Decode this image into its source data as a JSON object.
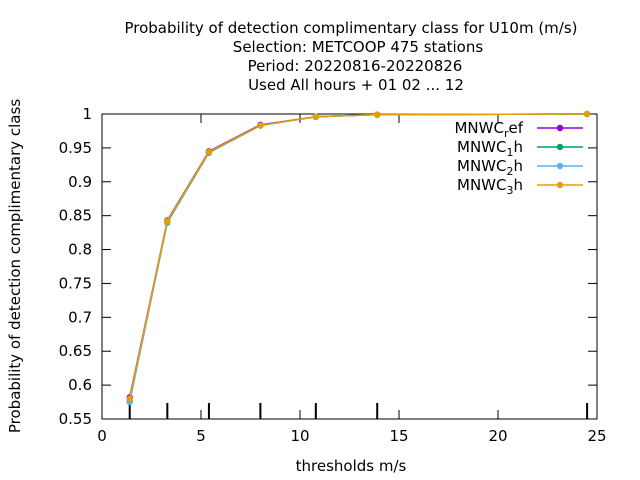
{
  "chart_data": {
    "type": "line",
    "title_lines": [
      "Probability of detection complimentary class  for U10m (m/s)",
      "Selection: METCOOP    475 stations",
      "Period: 20220816-20220826",
      "Used  All hours + 01 02 ... 12"
    ],
    "xlabel": "thresholds m/s",
    "ylabel": "Probability of detection complimentary class",
    "xlim": [
      0,
      25
    ],
    "ylim": [
      0.55,
      1
    ],
    "xticks": [
      0,
      5,
      10,
      15,
      20,
      25
    ],
    "yticks": [
      0.55,
      0.6,
      0.65,
      0.7,
      0.75,
      0.8,
      0.85,
      0.9,
      0.95,
      1
    ],
    "ytick_labels": [
      "0.55",
      "0.6",
      "0.65",
      "0.7",
      "0.75",
      "0.8",
      "0.85",
      "0.9",
      "0.95",
      "1"
    ],
    "threshold_marks": [
      1.4,
      3.3,
      5.4,
      8.0,
      10.8,
      13.9,
      24.5
    ],
    "legend_position": "top-right",
    "x": [
      1.4,
      3.3,
      5.4,
      8.0,
      10.8,
      13.9,
      24.5
    ],
    "series": [
      {
        "name_base": "MNWC",
        "name_sub": "r",
        "name_tail": "ef",
        "color": "#9400d3",
        "values": [
          0.582,
          0.843,
          0.945,
          0.984,
          0.996,
          0.999,
          1.0
        ]
      },
      {
        "name_base": "MNWC",
        "name_sub": "1",
        "name_tail": "h",
        "color": "#009e73",
        "values": [
          0.577,
          0.84,
          0.943,
          0.983,
          0.996,
          0.999,
          1.0
        ]
      },
      {
        "name_base": "MNWC",
        "name_sub": "2",
        "name_tail": "h",
        "color": "#56b4e9",
        "values": [
          0.575,
          0.841,
          0.944,
          0.983,
          0.996,
          0.999,
          1.0
        ]
      },
      {
        "name_base": "MNWC",
        "name_sub": "3",
        "name_tail": "h",
        "color": "#e69f00",
        "values": [
          0.58,
          0.842,
          0.944,
          0.983,
          0.996,
          0.999,
          1.0
        ]
      }
    ]
  }
}
